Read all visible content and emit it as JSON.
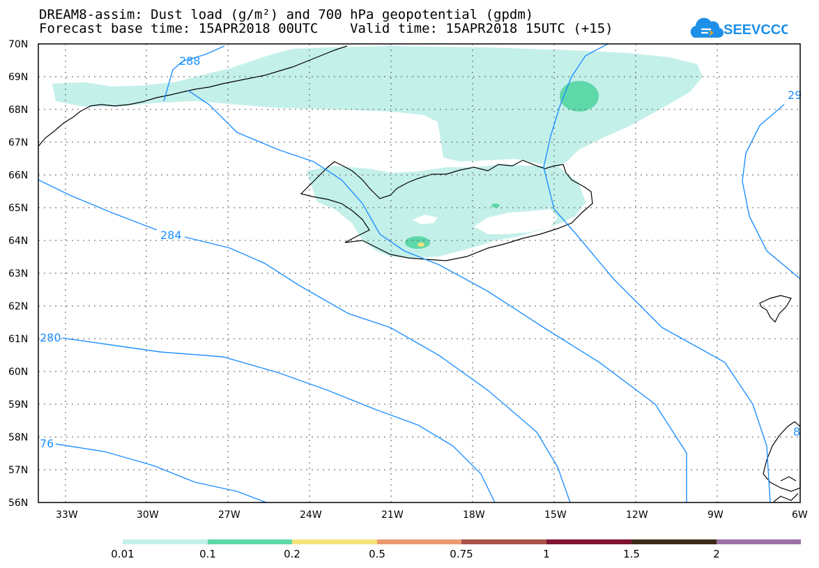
{
  "header": {
    "title_line1": "DREAM8-assim: Dust load (g/m²) and 700 hPa geopotential (gpdm)",
    "title_line2": "Forecast base time: 15APR2018 00UTC    Valid time: 15APR2018 15UTC (+15)"
  },
  "logo": {
    "text": "SEEVCCC",
    "icon": "cloud-logo-icon",
    "color": "#1e90e8"
  },
  "map": {
    "lat_labels": [
      "70N",
      "69N",
      "68N",
      "67N",
      "66N",
      "65N",
      "64N",
      "63N",
      "62N",
      "61N",
      "60N",
      "59N",
      "58N",
      "57N",
      "56N"
    ],
    "lon_labels": [
      "33W",
      "30W",
      "27W",
      "24W",
      "21W",
      "18W",
      "15W",
      "12W",
      "9W",
      "6W"
    ],
    "contour_labels": [
      "288",
      "284",
      "280",
      "76",
      "29",
      "8"
    ],
    "contour_color": "#1e90ff",
    "coast_color": "#000000"
  },
  "colorbar": {
    "colors": [
      "#c4f0ea",
      "#5ed8a8",
      "#f5e27a",
      "#e99a72",
      "#a9524a",
      "#7e1432",
      "#3d2a18",
      "#9c72a6"
    ],
    "labels": [
      "0.01",
      "0.1",
      "0.2",
      "0.5",
      "0.75",
      "1",
      "1.5",
      "2"
    ]
  }
}
